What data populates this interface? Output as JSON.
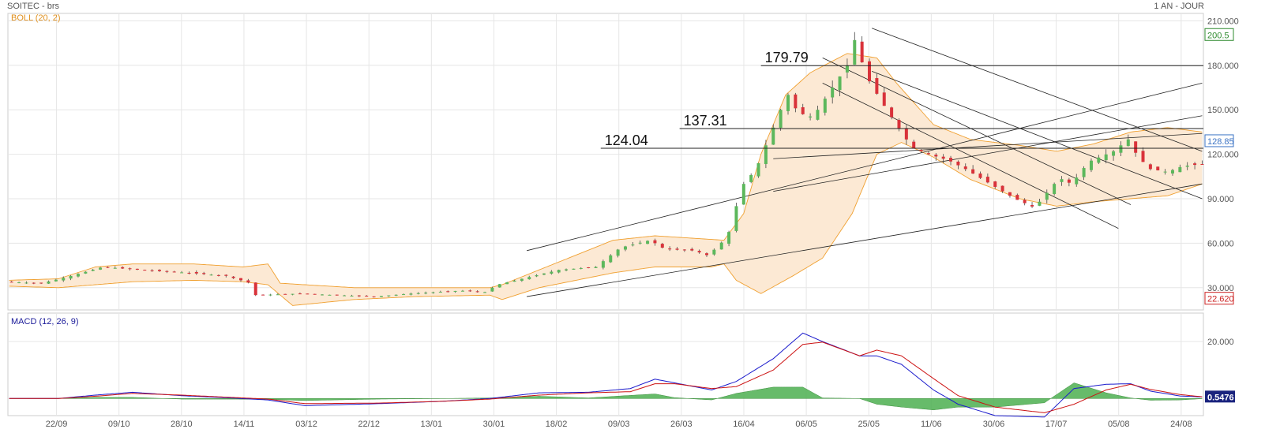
{
  "header": {
    "symbol": "SOITEC - brs",
    "period": "1 AN - JOUR",
    "indicator_main": "BOLL (20, 2)",
    "indicator_sub": "MACD (12, 26, 9)"
  },
  "colors": {
    "up": "#5cb85c",
    "down": "#d9323a",
    "bollinger": "#f0a030",
    "bollinger_fill": "#fce9d4",
    "macd": "#1a1acc",
    "signal": "#cc1111",
    "hist": "#4caf50",
    "grid": "#e6e6e6",
    "axis_text": "#555555",
    "last_price": "#3b73c4",
    "high_box": "#2e8b2e",
    "low_box": "#cc2222",
    "macd_box": "#1a237e"
  },
  "chart_data": [
    {
      "type": "candlestick",
      "title": "SOITEC - brs",
      "period": "1 AN - JOUR",
      "indicator": "BOLL (20, 2)",
      "ylim": [
        15,
        215
      ],
      "yticks": [
        "30.000",
        "60.000",
        "90.000",
        "120.000",
        "150.000",
        "180.000",
        "210.000"
      ],
      "ytick_values": [
        30,
        60,
        90,
        120,
        150,
        180,
        210
      ],
      "xticks": [
        "22/09",
        "09/10",
        "28/10",
        "14/11",
        "03/12",
        "22/12",
        "13/01",
        "30/01",
        "18/02",
        "09/03",
        "26/03",
        "16/04",
        "06/05",
        "25/05",
        "11/06",
        "30/06",
        "17/07",
        "05/08",
        "24/08"
      ],
      "price_labels": {
        "high": "200.5",
        "last": "128.85",
        "low": "22.620"
      },
      "grid": true,
      "horizontal_levels": [
        {
          "value": 179.79,
          "label": "179.79"
        },
        {
          "value": 137.31,
          "label": "137.31"
        },
        {
          "value": 124.04,
          "label": "124.04"
        }
      ],
      "anchors": [
        [
          0,
          34
        ],
        [
          15,
          33
        ],
        [
          25,
          37
        ],
        [
          40,
          44
        ],
        [
          55,
          42
        ],
        [
          75,
          40
        ],
        [
          90,
          38
        ],
        [
          100,
          33
        ],
        [
          102,
          25
        ],
        [
          120,
          26
        ],
        [
          135,
          25
        ],
        [
          150,
          24
        ],
        [
          165,
          26
        ],
        [
          185,
          28
        ],
        [
          195,
          27
        ],
        [
          200,
          32
        ],
        [
          215,
          38
        ],
        [
          225,
          42
        ],
        [
          240,
          44
        ],
        [
          250,
          57
        ],
        [
          262,
          62
        ],
        [
          268,
          56
        ],
        [
          280,
          55
        ],
        [
          285,
          52
        ],
        [
          290,
          58
        ],
        [
          295,
          70
        ],
        [
          297,
          85
        ],
        [
          300,
          100
        ],
        [
          305,
          110
        ],
        [
          310,
          130
        ],
        [
          315,
          150
        ],
        [
          318,
          160
        ],
        [
          322,
          148
        ],
        [
          328,
          145
        ],
        [
          332,
          155
        ],
        [
          338,
          170
        ],
        [
          342,
          180
        ],
        [
          345,
          197
        ],
        [
          350,
          172
        ],
        [
          355,
          158
        ],
        [
          358,
          150
        ],
        [
          362,
          140
        ],
        [
          368,
          125
        ],
        [
          375,
          120
        ],
        [
          383,
          116
        ],
        [
          390,
          110
        ],
        [
          398,
          102
        ],
        [
          405,
          95
        ],
        [
          410,
          90
        ],
        [
          418,
          84
        ],
        [
          422,
          92
        ],
        [
          428,
          104
        ],
        [
          433,
          100
        ],
        [
          440,
          115
        ],
        [
          450,
          122
        ],
        [
          456,
          130
        ],
        [
          460,
          118
        ],
        [
          465,
          110
        ],
        [
          472,
          108
        ],
        [
          478,
          112
        ],
        [
          484,
          113
        ]
      ],
      "bollinger_upper": [
        [
          0,
          35
        ],
        [
          20,
          36
        ],
        [
          35,
          44
        ],
        [
          50,
          46
        ],
        [
          75,
          46
        ],
        [
          95,
          44
        ],
        [
          105,
          46
        ],
        [
          110,
          33
        ],
        [
          140,
          30
        ],
        [
          165,
          30
        ],
        [
          195,
          30
        ],
        [
          200,
          32
        ],
        [
          215,
          42
        ],
        [
          230,
          52
        ],
        [
          245,
          62
        ],
        [
          262,
          65
        ],
        [
          290,
          62
        ],
        [
          298,
          80
        ],
        [
          305,
          120
        ],
        [
          315,
          160
        ],
        [
          325,
          175
        ],
        [
          340,
          188
        ],
        [
          352,
          185
        ],
        [
          360,
          168
        ],
        [
          375,
          140
        ],
        [
          390,
          130
        ],
        [
          410,
          126
        ],
        [
          425,
          122
        ],
        [
          440,
          127
        ],
        [
          455,
          135
        ],
        [
          470,
          138
        ],
        [
          484,
          135
        ]
      ],
      "bollinger_lower": [
        [
          0,
          31
        ],
        [
          20,
          30
        ],
        [
          35,
          32
        ],
        [
          50,
          34
        ],
        [
          75,
          35
        ],
        [
          95,
          34
        ],
        [
          105,
          32
        ],
        [
          115,
          18
        ],
        [
          140,
          22
        ],
        [
          165,
          24
        ],
        [
          195,
          25
        ],
        [
          200,
          22
        ],
        [
          215,
          30
        ],
        [
          230,
          35
        ],
        [
          245,
          40
        ],
        [
          262,
          44
        ],
        [
          285,
          44
        ],
        [
          290,
          46
        ],
        [
          295,
          35
        ],
        [
          305,
          26
        ],
        [
          318,
          38
        ],
        [
          330,
          50
        ],
        [
          342,
          80
        ],
        [
          352,
          120
        ],
        [
          362,
          128
        ],
        [
          375,
          118
        ],
        [
          390,
          103
        ],
        [
          410,
          90
        ],
        [
          425,
          85
        ],
        [
          440,
          88
        ],
        [
          455,
          90
        ],
        [
          470,
          92
        ],
        [
          484,
          100
        ]
      ]
    },
    {
      "type": "line",
      "title": "MACD (12, 26, 9)",
      "ylim": [
        -6,
        30
      ],
      "yticks": [
        "20.000"
      ],
      "ytick_values": [
        20
      ],
      "last_value_label": "0.5476",
      "series": [
        {
          "name": "MACD",
          "points": [
            [
              0,
              0
            ],
            [
              20,
              0
            ],
            [
              35,
              1.2
            ],
            [
              50,
              2.2
            ],
            [
              70,
              1.0
            ],
            [
              90,
              0.2
            ],
            [
              105,
              -0.5
            ],
            [
              120,
              -2.5
            ],
            [
              150,
              -1.8
            ],
            [
              175,
              -1.0
            ],
            [
              195,
              0
            ],
            [
              215,
              2
            ],
            [
              235,
              2.2
            ],
            [
              252,
              3.5
            ],
            [
              262,
              6.8
            ],
            [
              270,
              5.5
            ],
            [
              285,
              3
            ],
            [
              295,
              6
            ],
            [
              310,
              14
            ],
            [
              322,
              23
            ],
            [
              330,
              20
            ],
            [
              345,
              15
            ],
            [
              352,
              15
            ],
            [
              362,
              12
            ],
            [
              375,
              3
            ],
            [
              385,
              -2
            ],
            [
              400,
              -6
            ],
            [
              420,
              -6.5
            ],
            [
              432,
              3.5
            ],
            [
              445,
              5
            ],
            [
              455,
              5.2
            ],
            [
              463,
              2.6
            ],
            [
              475,
              0.9
            ],
            [
              484,
              0.55
            ]
          ]
        },
        {
          "name": "Signal",
          "points": [
            [
              0,
              0
            ],
            [
              20,
              0
            ],
            [
              35,
              0.8
            ],
            [
              50,
              1.8
            ],
            [
              70,
              1.2
            ],
            [
              90,
              0.4
            ],
            [
              105,
              -0.2
            ],
            [
              120,
              -1.8
            ],
            [
              150,
              -1.6
            ],
            [
              175,
              -1.0
            ],
            [
              195,
              -0.2
            ],
            [
              215,
              1.2
            ],
            [
              235,
              2.0
            ],
            [
              252,
              2.4
            ],
            [
              262,
              5.2
            ],
            [
              270,
              5.2
            ],
            [
              285,
              3.5
            ],
            [
              295,
              4.2
            ],
            [
              310,
              10
            ],
            [
              322,
              19
            ],
            [
              330,
              19.8
            ],
            [
              345,
              15
            ],
            [
              352,
              17
            ],
            [
              362,
              15
            ],
            [
              375,
              7
            ],
            [
              385,
              1
            ],
            [
              400,
              -3
            ],
            [
              420,
              -5
            ],
            [
              432,
              -2
            ],
            [
              445,
              3
            ],
            [
              455,
              5
            ],
            [
              463,
              3.2
            ],
            [
              475,
              1.4
            ],
            [
              484,
              0.6
            ]
          ]
        }
      ]
    }
  ]
}
